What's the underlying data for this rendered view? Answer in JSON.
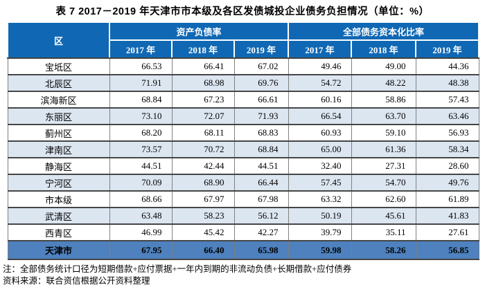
{
  "title": "表 7  2017－2019 年天津市市本级及各区发债城投企业债务负担情况（单位：%）",
  "table": {
    "region_header": "区",
    "groups": [
      {
        "label": "资产负债率"
      },
      {
        "label": "全部债务资本化比率"
      }
    ],
    "years": [
      "2017 年",
      "2018 年",
      "2019 年"
    ],
    "rows": [
      {
        "name": "宝坻区",
        "values": [
          "66.53",
          "66.41",
          "67.02",
          "49.46",
          "49.00",
          "44.36"
        ]
      },
      {
        "name": "北辰区",
        "values": [
          "71.91",
          "68.98",
          "69.76",
          "54.72",
          "48.22",
          "48.38"
        ]
      },
      {
        "name": "滨海新区",
        "values": [
          "68.84",
          "67.23",
          "66.61",
          "60.16",
          "58.86",
          "57.43"
        ]
      },
      {
        "name": "东丽区",
        "values": [
          "73.10",
          "72.07",
          "71.93",
          "66.54",
          "63.70",
          "63.46"
        ]
      },
      {
        "name": "蓟州区",
        "values": [
          "68.20",
          "68.11",
          "68.83",
          "60.93",
          "59.10",
          "56.93"
        ]
      },
      {
        "name": "津南区",
        "values": [
          "73.57",
          "70.72",
          "68.84",
          "65.00",
          "61.36",
          "58.34"
        ]
      },
      {
        "name": "静海区",
        "values": [
          "44.51",
          "42.44",
          "44.51",
          "32.40",
          "27.31",
          "28.60"
        ]
      },
      {
        "name": "宁河区",
        "values": [
          "70.09",
          "68.90",
          "66.44",
          "57.45",
          "54.70",
          "49.76"
        ]
      },
      {
        "name": "市本级",
        "values": [
          "68.66",
          "67.97",
          "67.98",
          "63.32",
          "62.60",
          "61.89"
        ]
      },
      {
        "name": "武清区",
        "values": [
          "63.48",
          "58.23",
          "56.12",
          "50.19",
          "45.61",
          "41.83"
        ]
      },
      {
        "name": "西青区",
        "values": [
          "46.99",
          "45.42",
          "42.27",
          "39.79",
          "35.11",
          "27.61"
        ]
      }
    ],
    "total_row": {
      "name": "天津市",
      "values": [
        "67.95",
        "66.40",
        "65.98",
        "59.98",
        "58.26",
        "56.85"
      ]
    }
  },
  "notes": [
    "注：全部债务统计口径为短期借款+应付票据+一年内到期的非流动负债+长期借款+应付债券",
    "资料来源：联合资信根据公开资料整理"
  ],
  "colors": {
    "header_bg": "#1068B4",
    "header_text": "#FFFFFF",
    "alt_row_bg": "#DCE6F1",
    "total_row_bg": "#4E81BD"
  }
}
